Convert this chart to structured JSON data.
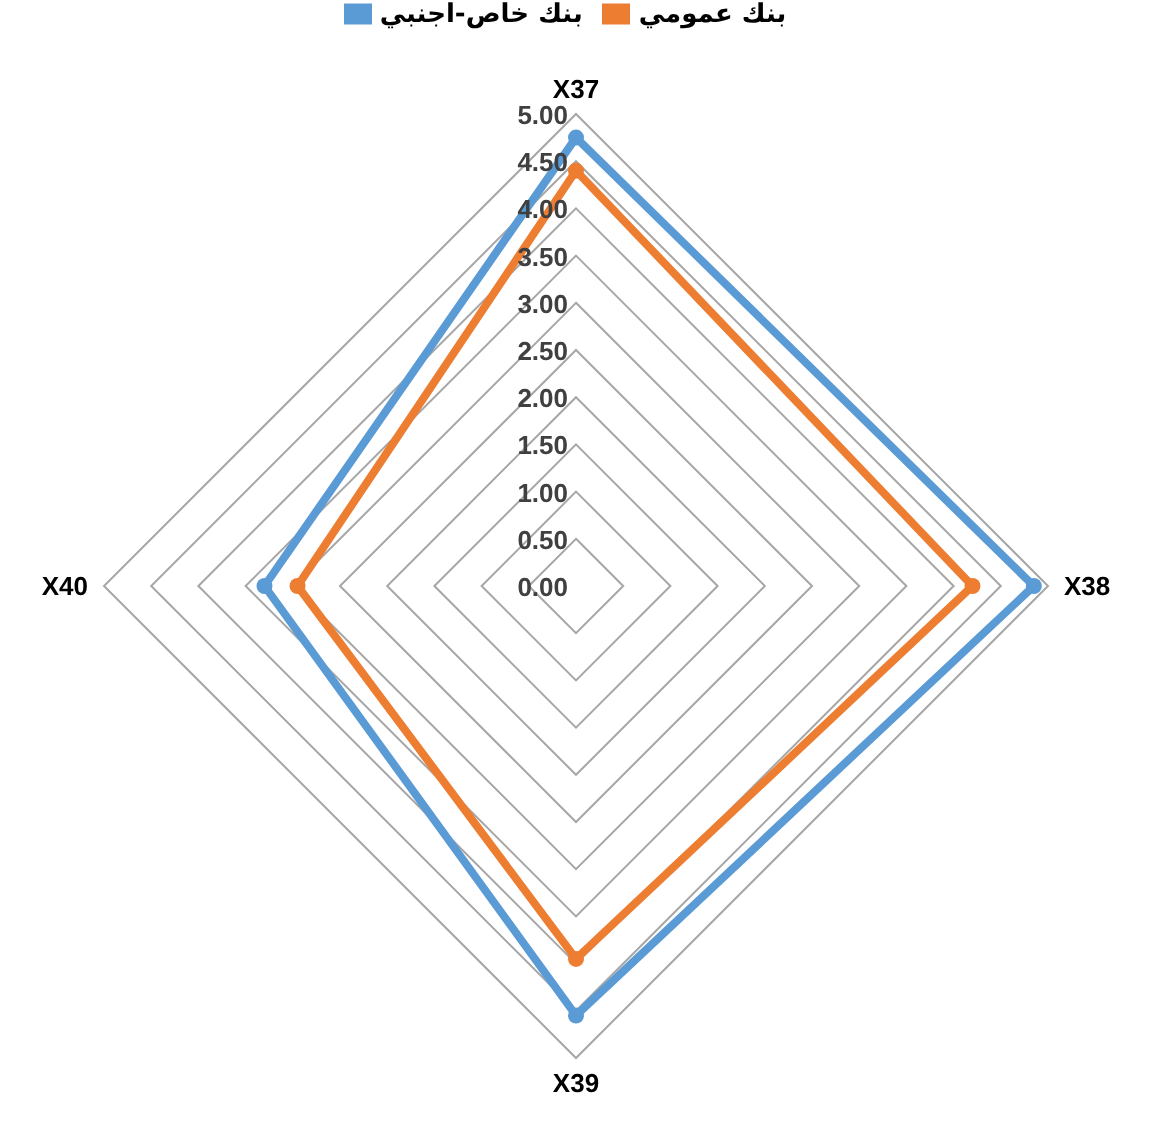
{
  "chart_data": {
    "type": "radar",
    "categories": [
      "X37",
      "X38",
      "X39",
      "X40"
    ],
    "series": [
      {
        "name": "بنك خاص-اجنبي",
        "color": "#5b9bd5",
        "values": [
          4.75,
          4.85,
          4.55,
          3.3
        ]
      },
      {
        "name": "بنك عمومي",
        "color": "#ed7d31",
        "values": [
          4.4,
          4.2,
          3.95,
          2.95
        ]
      }
    ],
    "ylim": [
      0,
      5
    ],
    "yticks": [
      {
        "value": 0,
        "label": "0.00"
      },
      {
        "value": 0.5,
        "label": "0.50"
      },
      {
        "value": 1,
        "label": "1.00"
      },
      {
        "value": 1.5,
        "label": "1.50"
      },
      {
        "value": 2,
        "label": "2.00"
      },
      {
        "value": 2.5,
        "label": "2.50"
      },
      {
        "value": 3,
        "label": "3.00"
      },
      {
        "value": 3.5,
        "label": "3.50"
      },
      {
        "value": 4,
        "label": "4.00"
      },
      {
        "value": 4.5,
        "label": "4.50"
      },
      {
        "value": 5,
        "label": "5.00"
      }
    ],
    "grid": true,
    "legend": "top",
    "marker": "circle",
    "line_style": "solid"
  }
}
